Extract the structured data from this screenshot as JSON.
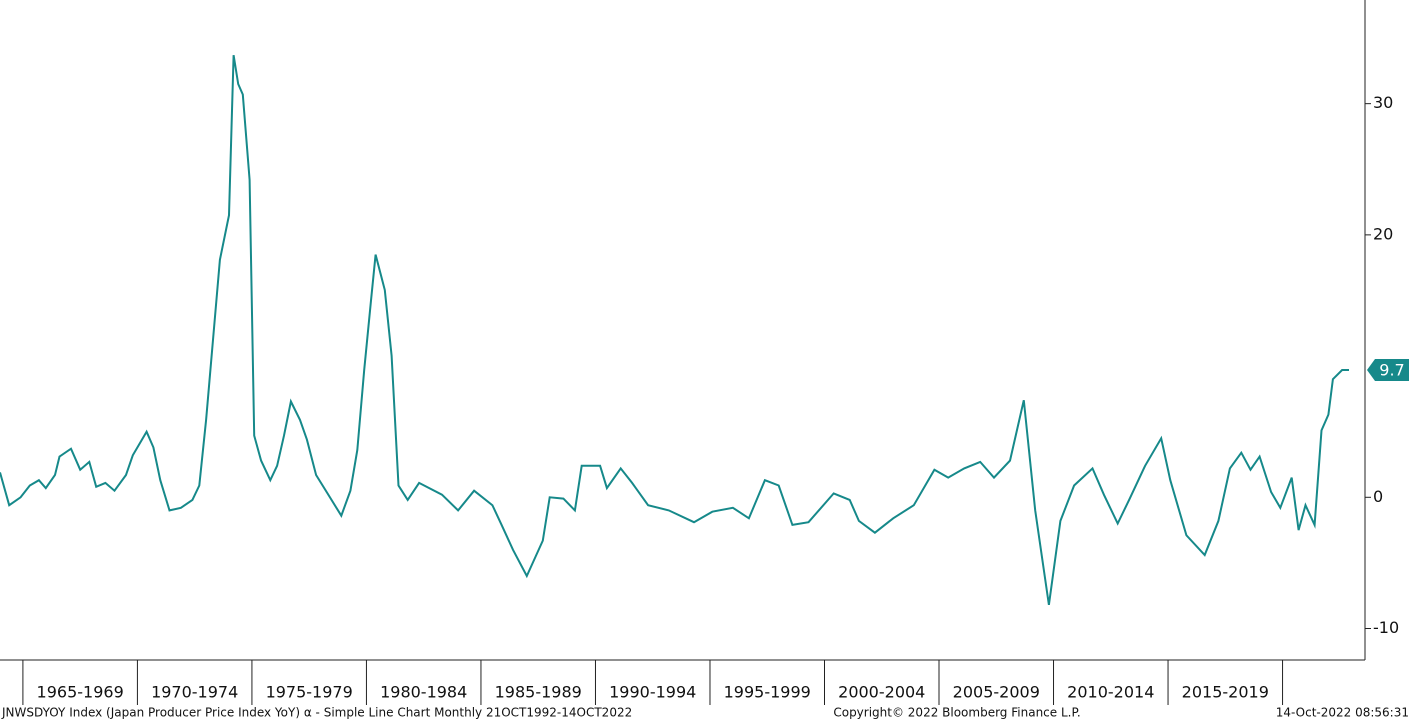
{
  "chart_data": {
    "type": "line",
    "footer_left": "JNWSDYOY Index (Japan Producer Price Index YoY)  α - Simple Line Chart  Monthly 21OCT1992-14OCT2022",
    "footer_center": "Copyright© 2022 Bloomberg Finance L.P.",
    "footer_right": "14-Oct-2022 08:56:31",
    "x": [
      1964.0,
      1964.4,
      1964.9,
      1965.3,
      1965.7,
      1966.0,
      1966.4,
      1966.6,
      1967.1,
      1967.5,
      1967.9,
      1968.2,
      1968.6,
      1969.0,
      1969.5,
      1969.8,
      1970.4,
      1970.7,
      1971.0,
      1971.4,
      1971.9,
      1972.4,
      1972.7,
      1973.0,
      1973.3,
      1973.6,
      1974.0,
      1974.2,
      1974.4,
      1974.6,
      1974.9,
      1975.1,
      1975.4,
      1975.8,
      1976.1,
      1976.4,
      1976.7,
      1977.1,
      1977.4,
      1977.8,
      1978.3,
      1978.9,
      1979.3,
      1979.6,
      1979.9,
      1980.2,
      1980.4,
      1980.8,
      1981.1,
      1981.4,
      1981.8,
      1982.3,
      1983.3,
      1984.0,
      1984.7,
      1985.5,
      1985.9,
      1986.4,
      1987.0,
      1987.7,
      1988.0,
      1988.6,
      1989.1,
      1989.4,
      1990.2,
      1990.5,
      1991.1,
      1991.6,
      1992.3,
      1993.2,
      1994.3,
      1995.1,
      1996.0,
      1996.7,
      1997.4,
      1998.0,
      1998.6,
      1999.3,
      2000.4,
      2001.1,
      2001.5,
      2002.2,
      2003.0,
      2003.9,
      2004.8,
      2005.4,
      2006.1,
      2006.8,
      2007.4,
      2008.1,
      2008.7,
      2009.2,
      2009.8,
      2010.3,
      2010.9,
      2011.7,
      2012.2,
      2012.8,
      2013.3,
      2014.0,
      2014.7,
      2015.1,
      2015.8,
      2016.6,
      2017.2,
      2017.7,
      2018.2,
      2018.6,
      2019.0,
      2019.5,
      2019.9,
      2020.4,
      2020.7,
      2021.0,
      2021.4,
      2021.7,
      2022.0,
      2022.2,
      2022.6,
      2022.9
    ],
    "series": [
      {
        "name": "JNWSDYOY Index",
        "color": "#16898a",
        "values": [
          1.9,
          -0.6,
          0,
          0.9,
          1.3,
          0.7,
          1.7,
          3.1,
          3.7,
          2.1,
          2.7,
          0.8,
          1.1,
          0.5,
          1.7,
          3.2,
          5.0,
          3.8,
          1.3,
          -1.0,
          -0.8,
          -0.2,
          0.9,
          5.9,
          12,
          18.1,
          21.5,
          33.7,
          31.5,
          30.7,
          24.2,
          4.7,
          2.8,
          1.3,
          2.4,
          4.7,
          7.3,
          5.9,
          4.4,
          1.7,
          0.3,
          -1.4,
          0.5,
          3.6,
          9.7,
          15,
          18.5,
          15.8,
          10.8,
          0.9,
          -0.2,
          1.1,
          0.2,
          -1.0,
          0.5,
          -0.6,
          -2.1,
          -4.0,
          -6.0,
          -3.3,
          0,
          -0.1,
          -1.0,
          2.4,
          2.4,
          0.7,
          2.2,
          1.1,
          -0.6,
          -1.0,
          -1.9,
          -1.1,
          -0.8,
          -1.6,
          1.3,
          0.9,
          -2.1,
          -1.9,
          0.3,
          -0.2,
          -1.8,
          -2.7,
          -1.6,
          -0.6,
          2.1,
          1.5,
          2.2,
          2.7,
          1.5,
          2.8,
          7.4,
          -1.0,
          -8.2,
          -1.8,
          0.9,
          2.2,
          0.2,
          -2.0,
          -0.2,
          2.4,
          4.5,
          1.3,
          -2.9,
          -4.4,
          -1.8,
          2.2,
          3.4,
          2.1,
          3.1,
          0.4,
          -0.8,
          1.5,
          -2.5,
          -0.6,
          -2.1,
          5.1,
          6.3,
          9.0,
          9.7,
          9.7
        ]
      }
    ],
    "xlim": [
      1964.0,
      2023.6
    ],
    "xticks": [
      {
        "value": 1967.5,
        "label": "1965-1969"
      },
      {
        "value": 1972.5,
        "label": "1970-1974"
      },
      {
        "value": 1977.5,
        "label": "1975-1979"
      },
      {
        "value": 1982.5,
        "label": "1980-1984"
      },
      {
        "value": 1987.5,
        "label": "1985-1989"
      },
      {
        "value": 1992.5,
        "label": "1990-1994"
      },
      {
        "value": 1997.5,
        "label": "1995-1999"
      },
      {
        "value": 2002.5,
        "label": "2000-2004"
      },
      {
        "value": 2007.5,
        "label": "2005-2009"
      },
      {
        "value": 2012.5,
        "label": "2010-2014"
      },
      {
        "value": 2017.5,
        "label": "2015-2019"
      }
    ],
    "ylim": [
      -12.4,
      37.9
    ],
    "yticks": [
      -10,
      0,
      20,
      30
    ],
    "y_axis_side": "right"
  }
}
